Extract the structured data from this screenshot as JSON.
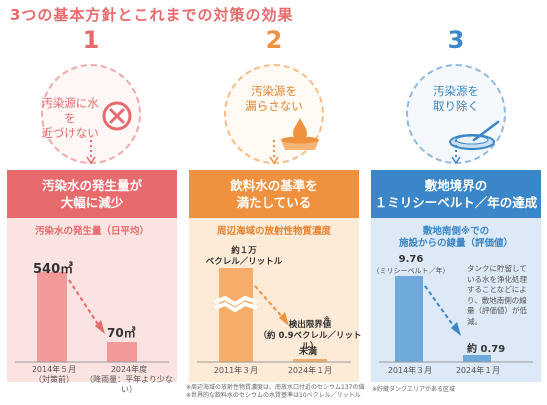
{
  "title": "3つの基本方針とこれまでの対策の効果",
  "colors": {
    "red": "#e76a6c",
    "orange": "#f0913f",
    "blue": "#3a86c8",
    "red_pale": "#fbe3e2",
    "orange_pale": "#fdebd8",
    "blue_pale": "#dde9f6"
  },
  "policies": [
    {
      "number": "1",
      "text": "汚染源に水を\n近づけない",
      "icon": "no-entry-icon"
    },
    {
      "number": "2",
      "text": "汚染源を\n漏らさない",
      "icon": "water-drop-icon"
    },
    {
      "number": "3",
      "text": "汚染源を\n取り除く",
      "icon": "petri-dish-icon"
    }
  ],
  "cards": [
    {
      "header": "汚染水の発生量が\n大幅に減少",
      "subtitle": "汚染水の発生量（日平均）",
      "labels": {
        "value_before": "540㎥",
        "value_after": "70㎥",
        "date_before": "2014年５月\n（対策前）",
        "date_after": "2024年度\n（降雨量：平年より少ない）"
      }
    },
    {
      "header": "飲料水の基準を\n満たしている",
      "subtitle": "周辺海域の放射性物質濃度",
      "labels": {
        "value_before": "約１万\nベクレル／リットル",
        "limit": "検出限界値\n（約 0.9ベクレル／リットル）",
        "limit_mark": "※",
        "value_after": "未満",
        "date_before": "2011年３月",
        "date_after": "2024年１月"
      },
      "notes": "※周辺海域の放射性物質濃度は、南放水口付近のセシウム137の値\n※世界的な飲料水のセシウムの水質基準は10ベクレル／リットル"
    },
    {
      "header": "敷地境界の\n１ミリシーベルト／年の達成",
      "subtitle": "敷地南側※での\n施設からの線量（評価値）",
      "labels": {
        "value_before": "9.76",
        "unit": "（ミリシーベルト／年）",
        "value_after": "約 0.79",
        "date_before": "2014年３月",
        "date_after": "2024年１月",
        "explain": "タンクに貯留して\nいる水を浄化処理\nすることなどによ\nり、敷地南側の線\n量（評価値）が低減。"
      },
      "notes": "※貯蔵タンクエリアがある区域"
    }
  ],
  "chart_data": [
    {
      "type": "bar",
      "title": "汚染水の発生量（日平均）",
      "categories": [
        "2014年５月",
        "2024年度"
      ],
      "values": [
        540,
        70
      ],
      "unit": "㎥"
    },
    {
      "type": "bar",
      "title": "周辺海域の放射性物質濃度",
      "categories": [
        "2011年３月",
        "2024年１月"
      ],
      "values": [
        10000,
        0.9
      ],
      "unit": "ベクレル／リットル",
      "axis_break": true
    },
    {
      "type": "bar",
      "title": "敷地南側での施設からの線量（評価値）",
      "categories": [
        "2014年３月",
        "2024年１月"
      ],
      "values": [
        9.76,
        0.79
      ],
      "unit": "ミリシーベルト／年"
    }
  ]
}
